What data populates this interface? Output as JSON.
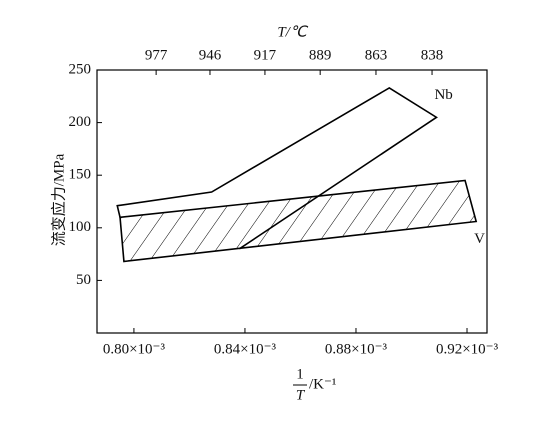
{
  "chart_data": {
    "type": "line",
    "ylabel": "流变应力/MPa",
    "xlabel": {
      "numerator": "1",
      "denominator": "T",
      "unit": "/K⁻¹"
    },
    "x2label": "T/℃",
    "xlim": [
      0.0007867,
      0.0009272
    ],
    "ylim": [
      0,
      250
    ],
    "yticks": [
      50,
      100,
      150,
      200,
      250
    ],
    "xticks": [
      {
        "value": 0.0008,
        "label": "0.80×10⁻³"
      },
      {
        "value": 0.00084,
        "label": "0.84×10⁻³"
      },
      {
        "value": 0.00088,
        "label": "0.88×10⁻³"
      },
      {
        "value": 0.00092,
        "label": "0.92×10⁻³"
      }
    ],
    "x2ticks": [
      {
        "value": 0.000808,
        "label": "977"
      },
      {
        "value": 0.0008274,
        "label": "946"
      },
      {
        "value": 0.0008472,
        "label": "917"
      },
      {
        "value": 0.0008671,
        "label": "889"
      },
      {
        "value": 0.0008872,
        "label": "863"
      },
      {
        "value": 0.0009074,
        "label": "838"
      }
    ],
    "series": [
      {
        "name": "Nb",
        "color": "#000000",
        "closed": false,
        "hatch": false,
        "x": [
          0.000795,
          0.000794,
          0.000828,
          0.000892,
          0.000909,
          0.000838
        ],
        "values": [
          110,
          121,
          134,
          233,
          205,
          80
        ]
      },
      {
        "name": "V",
        "color": "#000000",
        "closed": true,
        "hatch": true,
        "x": [
          0.000795,
          0.0009193,
          0.0009233,
          0.0007964
        ],
        "values": [
          110,
          145,
          106,
          68
        ]
      }
    ]
  }
}
